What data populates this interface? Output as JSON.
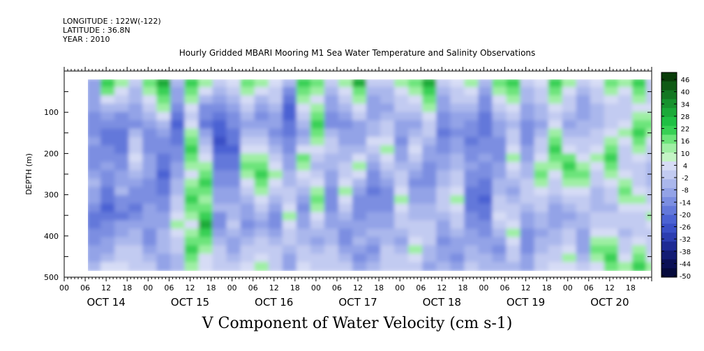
{
  "header": {
    "longitude": "LONGITUDE : 122W(-122)",
    "latitude": "LATITUDE : 36.8N",
    "year": "YEAR : 2010"
  },
  "chart_data": {
    "type": "heatmap",
    "title": "Hourly Gridded MBARI Mooring M1 Sea Water Temperature and Salinity Observations",
    "bottom_title": "V Component of Water Velocity (cm s-1)",
    "ylabel": "DEPTH (m)",
    "ylim": [
      500,
      0
    ],
    "y_ticks": [
      100,
      200,
      300,
      400,
      500
    ],
    "data_depth_range": [
      20,
      485
    ],
    "x_range_days": [
      "OCT 14 00",
      "OCT 20 23"
    ],
    "x_hour_tick_labels": [
      "00",
      "06",
      "12",
      "18"
    ],
    "day_labels": [
      "OCT 14",
      "OCT 15",
      "OCT 16",
      "OCT 17",
      "OCT 18",
      "OCT 19",
      "OCT 20"
    ],
    "colorbar": {
      "labels": [
        "46",
        "40",
        "34",
        "28",
        "22",
        "16",
        "10",
        "4",
        "-2",
        "-8",
        "-14",
        "-20",
        "-26",
        "-32",
        "-38",
        "-44",
        "-50"
      ],
      "colors": [
        "#0a3d0a",
        "#0f5a15",
        "#137722",
        "#17922e",
        "#1aaa38",
        "#1fc043",
        "#37d054",
        "#6ce47a",
        "#9fefa4",
        "#c4f5c5",
        "#d6dcf5",
        "#c2cbf1",
        "#aab7ec",
        "#93a3e7",
        "#7b8ee1",
        "#6378da",
        "#4b62d3",
        "#3a4fc6",
        "#2c3db0",
        "#1e2a94",
        "#131c74",
        "#0b1055",
        "#060a3c"
      ]
    },
    "columns": [
      {
        "hour": 6,
        "cells": [
          -12,
          -10,
          -9,
          -12,
          -14,
          -16,
          -15,
          -12,
          -14,
          -16,
          -13,
          -10,
          -8,
          -10,
          -12,
          -14,
          -18,
          -20,
          -16,
          -14,
          -12,
          -10,
          -6
        ]
      },
      {
        "hour": 10,
        "cells": [
          22,
          16,
          4,
          -8,
          -12,
          -14,
          -18,
          -20,
          -16,
          -14,
          -12,
          -14,
          -16,
          -18,
          -20,
          -22,
          -18,
          -16,
          -14,
          -12,
          -10,
          -8,
          4
        ]
      },
      {
        "hour": 14,
        "cells": [
          10,
          4,
          -2,
          -8,
          -14,
          -16,
          -18,
          -20,
          -18,
          -16,
          -14,
          -12,
          -10,
          -8,
          -14,
          -16,
          -18,
          -12,
          -10,
          -8,
          -4,
          -2,
          4
        ]
      },
      {
        "hour": 18,
        "cells": [
          -4,
          -6,
          -8,
          -10,
          -12,
          -14,
          -8,
          -4,
          -2,
          4,
          -2,
          -8,
          -12,
          -14,
          -16,
          -18,
          -14,
          -10,
          -8,
          -6,
          -4,
          -2,
          -2
        ]
      },
      {
        "hour": 22,
        "cells": [
          16,
          10,
          4,
          -2,
          -8,
          -12,
          -14,
          -16,
          -14,
          -12,
          -10,
          -12,
          -14,
          -16,
          -14,
          -12,
          -10,
          -12,
          -14,
          -16,
          -12,
          -8,
          -2
        ]
      },
      {
        "hour": 26,
        "cells": [
          28,
          22,
          16,
          10,
          4,
          -8,
          -12,
          -14,
          -16,
          -18,
          -20,
          -22,
          -20,
          -18,
          -16,
          -14,
          -12,
          -10,
          -8,
          -6,
          -8,
          -10,
          -12
        ]
      },
      {
        "hour": 30,
        "cells": [
          -8,
          -10,
          -12,
          -16,
          -18,
          -22,
          -20,
          -18,
          -16,
          -14,
          -12,
          -10,
          -8,
          -6,
          -4,
          -2,
          4,
          10,
          4,
          -2,
          -4,
          -6,
          -8
        ]
      },
      {
        "hour": 34,
        "cells": [
          22,
          16,
          10,
          4,
          -2,
          4,
          10,
          16,
          22,
          16,
          10,
          4,
          10,
          16,
          22,
          16,
          10,
          4,
          10,
          16,
          22,
          16,
          10
        ]
      },
      {
        "hour": 38,
        "cells": [
          10,
          4,
          -8,
          -14,
          -16,
          -18,
          -12,
          -8,
          -4,
          4,
          10,
          16,
          22,
          16,
          10,
          16,
          22,
          28,
          22,
          16,
          10,
          4,
          4
        ]
      },
      {
        "hour": 42,
        "cells": [
          -2,
          -8,
          -12,
          -16,
          -20,
          -22,
          -24,
          -26,
          -22,
          -20,
          -18,
          -16,
          -14,
          -12,
          -10,
          -8,
          -14,
          -16,
          -12,
          -8,
          -4,
          -2,
          -4
        ]
      },
      {
        "hour": 46,
        "cells": [
          4,
          -4,
          -8,
          -12,
          -14,
          -16,
          -18,
          -20,
          -22,
          -20,
          -18,
          -16,
          -14,
          -12,
          -10,
          -8,
          -6,
          -4,
          -8,
          -10,
          -12,
          -8,
          -4
        ]
      },
      {
        "hour": 50,
        "cells": [
          16,
          10,
          4,
          -2,
          -8,
          -10,
          -8,
          -4,
          4,
          10,
          16,
          10,
          4,
          -2,
          -8,
          -10,
          -12,
          -14,
          -10,
          -8,
          -4,
          -2,
          4
        ]
      },
      {
        "hour": 54,
        "cells": [
          10,
          4,
          -8,
          -12,
          -14,
          -12,
          -8,
          -4,
          4,
          10,
          16,
          22,
          16,
          10,
          4,
          -2,
          -8,
          -10,
          -8,
          -4,
          -2,
          4,
          10
        ]
      },
      {
        "hour": 58,
        "cells": [
          4,
          -2,
          -4,
          -8,
          -10,
          -12,
          -14,
          -10,
          -8,
          -4,
          4,
          10,
          4,
          -2,
          -8,
          -12,
          -14,
          -16,
          -12,
          -8,
          -4,
          -2,
          -2
        ]
      },
      {
        "hour": 62,
        "cells": [
          -8,
          -14,
          -18,
          -24,
          -22,
          -20,
          -18,
          -16,
          -14,
          -12,
          -10,
          -8,
          -6,
          -4,
          -2,
          4,
          10,
          4,
          -2,
          -4,
          -8,
          -10,
          -12
        ]
      },
      {
        "hour": 66,
        "cells": [
          22,
          16,
          10,
          4,
          -2,
          -8,
          -10,
          -8,
          4,
          16,
          10,
          4,
          -2,
          -8,
          -12,
          -14,
          -12,
          -10,
          -8,
          -6,
          -4,
          -2,
          4
        ]
      },
      {
        "hour": 70,
        "cells": [
          16,
          10,
          4,
          10,
          16,
          22,
          16,
          10,
          4,
          -2,
          -8,
          -4,
          4,
          10,
          16,
          10,
          4,
          -2,
          -8,
          -10,
          -8,
          -4,
          -2
        ]
      },
      {
        "hour": 74,
        "cells": [
          -2,
          -8,
          -10,
          -12,
          -14,
          -16,
          -8,
          -4,
          -2,
          -6,
          -8,
          -10,
          -12,
          -14,
          -16,
          -14,
          -12,
          -10,
          -8,
          -6,
          -4,
          -2,
          -2
        ]
      },
      {
        "hour": 78,
        "cells": [
          10,
          4,
          -2,
          -8,
          -12,
          -14,
          -12,
          -10,
          -8,
          -6,
          -4,
          -2,
          4,
          10,
          4,
          -2,
          -8,
          -12,
          -14,
          -16,
          -12,
          -8,
          -4
        ]
      },
      {
        "hour": 82,
        "cells": [
          28,
          16,
          10,
          4,
          -4,
          -10,
          -12,
          -10,
          -8,
          4,
          10,
          4,
          -8,
          -12,
          -14,
          -16,
          -14,
          -12,
          -10,
          -8,
          -12,
          -14,
          -10
        ]
      },
      {
        "hour": 86,
        "cells": [
          -2,
          -8,
          -10,
          -12,
          -10,
          -8,
          -6,
          4,
          -4,
          -8,
          -12,
          -14,
          -16,
          -18,
          -16,
          -14,
          -12,
          -10,
          -8,
          -12,
          -14,
          -10,
          -6
        ]
      },
      {
        "hour": 90,
        "cells": [
          -4,
          -6,
          -8,
          -10,
          -8,
          -4,
          -2,
          4,
          10,
          4,
          -2,
          -8,
          -12,
          -14,
          -16,
          -14,
          -12,
          -10,
          -8,
          -6,
          -4,
          -2,
          -2
        ]
      },
      {
        "hour": 94,
        "cells": [
          10,
          4,
          -2,
          -4,
          -8,
          -10,
          -12,
          -14,
          -12,
          -10,
          -8,
          -4,
          -2,
          4,
          10,
          4,
          -2,
          -4,
          -8,
          -10,
          -8,
          -4,
          -2
        ]
      },
      {
        "hour": 98,
        "cells": [
          16,
          10,
          4,
          -2,
          -8,
          -10,
          -8,
          -4,
          4,
          -2,
          -8,
          -12,
          -14,
          -12,
          -10,
          -8,
          -6,
          -4,
          -2,
          4,
          10,
          4,
          -2
        ]
      },
      {
        "hour": 102,
        "cells": [
          28,
          22,
          16,
          10,
          4,
          -2,
          -4,
          -8,
          -10,
          -12,
          -14,
          -16,
          -14,
          -12,
          -10,
          -8,
          -6,
          -4,
          -2,
          -4,
          -6,
          -8,
          -10
        ]
      },
      {
        "hour": 106,
        "cells": [
          -4,
          -8,
          -10,
          -12,
          -14,
          -16,
          -18,
          -16,
          -14,
          -12,
          -10,
          -8,
          -6,
          -4,
          -2,
          -4,
          -8,
          -10,
          -12,
          -14,
          -12,
          -10,
          -8
        ]
      },
      {
        "hour": 110,
        "cells": [
          4,
          -2,
          -4,
          -8,
          -10,
          -12,
          -14,
          -12,
          -10,
          -8,
          -6,
          -4,
          -2,
          4,
          10,
          4,
          -2,
          -4,
          -8,
          -10,
          -12,
          -14,
          -12
        ]
      },
      {
        "hour": 114,
        "cells": [
          10,
          4,
          -2,
          -8,
          -12,
          -14,
          -16,
          -18,
          -16,
          -14,
          -12,
          -14,
          -16,
          -18,
          -20,
          -18,
          -16,
          -14,
          -12,
          -10,
          -8,
          -6,
          -4
        ]
      },
      {
        "hour": 118,
        "cells": [
          -8,
          -12,
          -14,
          -16,
          -18,
          -20,
          -18,
          -16,
          -14,
          -12,
          -14,
          -16,
          -18,
          -20,
          -22,
          -20,
          -18,
          -16,
          -14,
          -12,
          -10,
          -8,
          -6
        ]
      },
      {
        "hour": 122,
        "cells": [
          16,
          10,
          4,
          -2,
          -8,
          -10,
          -12,
          -14,
          -16,
          -14,
          -12,
          -10,
          -8,
          -6,
          -4,
          -2,
          4,
          -2,
          -8,
          -12,
          -14,
          -12,
          -8
        ]
      },
      {
        "hour": 126,
        "cells": [
          22,
          16,
          10,
          4,
          -2,
          -8,
          -4,
          -2,
          4,
          10,
          4,
          -2,
          -8,
          -10,
          -8,
          -4,
          -2,
          4,
          10,
          4,
          -2,
          -4,
          -6
        ]
      },
      {
        "hour": 130,
        "cells": [
          -4,
          -6,
          -8,
          -10,
          -12,
          -14,
          -16,
          -14,
          -12,
          -10,
          -8,
          -6,
          -4,
          -2,
          -4,
          -8,
          -10,
          -12,
          -14,
          -16,
          -14,
          -12,
          -10
        ]
      },
      {
        "hour": 134,
        "cells": [
          4,
          -2,
          -4,
          -6,
          -8,
          -10,
          -8,
          -4,
          -2,
          4,
          10,
          16,
          10,
          4,
          -2,
          -4,
          -6,
          -8,
          -10,
          -8,
          -6,
          -4,
          -2
        ]
      },
      {
        "hour": 138,
        "cells": [
          22,
          16,
          10,
          4,
          -2,
          4,
          10,
          16,
          22,
          16,
          10,
          4,
          -2,
          -4,
          -8,
          -10,
          -12,
          -10,
          -8,
          -6,
          -4,
          -2,
          4
        ]
      },
      {
        "hour": 142,
        "cells": [
          10,
          4,
          -2,
          -4,
          -8,
          -10,
          -8,
          -4,
          4,
          16,
          22,
          16,
          10,
          4,
          -2,
          -8,
          -10,
          -8,
          -4,
          -2,
          4,
          10,
          4
        ]
      },
      {
        "hour": 146,
        "cells": [
          -4,
          -8,
          -10,
          -12,
          -10,
          -8,
          -6,
          -4,
          -2,
          4,
          10,
          16,
          10,
          4,
          -2,
          -4,
          -6,
          -8,
          -10,
          -12,
          -10,
          -8,
          -4
        ]
      },
      {
        "hour": 150,
        "cells": [
          4,
          -2,
          -4,
          -6,
          -8,
          -6,
          -4,
          -2,
          4,
          10,
          4,
          -2,
          -4,
          -6,
          -8,
          -6,
          -4,
          -2,
          4,
          10,
          16,
          10,
          4
        ]
      },
      {
        "hour": 154,
        "cells": [
          16,
          10,
          4,
          -2,
          -4,
          -2,
          4,
          10,
          16,
          22,
          16,
          10,
          4,
          -2,
          -4,
          -6,
          -4,
          -2,
          4,
          10,
          16,
          22,
          16
        ]
      },
      {
        "hour": 158,
        "cells": [
          10,
          4,
          -2,
          -4,
          -2,
          4,
          10,
          4,
          -2,
          -4,
          -2,
          4,
          10,
          16,
          10,
          4,
          -2,
          -4,
          -6,
          -4,
          -2,
          4,
          10
        ]
      },
      {
        "hour": 162,
        "cells": [
          22,
          16,
          10,
          4,
          10,
          16,
          22,
          16,
          10,
          4,
          -2,
          -4,
          -2,
          4,
          10,
          4,
          -2,
          -4,
          -2,
          4,
          10,
          16,
          22
        ]
      },
      {
        "hour": 166,
        "cells": [
          -2,
          -4,
          -2,
          4,
          10,
          16,
          10,
          4,
          -2,
          -4,
          -6,
          -8,
          -6,
          -4,
          -2,
          4,
          10,
          4,
          -2,
          -4,
          -2,
          4,
          10
        ]
      }
    ]
  }
}
